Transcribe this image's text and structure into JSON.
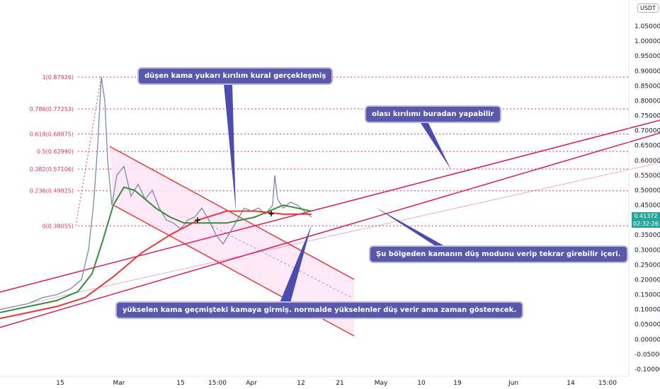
{
  "quote_currency": "USDT",
  "price_tag": {
    "price": "0.41372",
    "countdown": "02:32:26"
  },
  "colors": {
    "fib": "#d6336c",
    "channel": "#d81b60",
    "note_bg": "#5a58a8",
    "ma_green": "#3b8a3e",
    "ma_red": "#e53935",
    "pointer": "#4b4bb0",
    "price_tag": "#26a69a"
  },
  "annotations": [
    {
      "text": "düşen kama yukarı kırılım kural gerçekleşmiş"
    },
    {
      "text": "olası kırılımı buradan yapabilir"
    },
    {
      "text": "Şu bölgeden kamanın düş modunu verip tekrar girebilir içeri."
    },
    {
      "text": "yükselen kama geçmişteki kamaya girmiş. normalde yükselenler düş verir ama zaman gösterecek."
    }
  ],
  "chart_data": {
    "type": "line",
    "y_axis": {
      "min": -0.1,
      "max": 1.1,
      "position": "right"
    },
    "y_ticks": [
      "1.05000",
      "1.00000",
      "0.95000",
      "0.90000",
      "0.85000",
      "0.80000",
      "0.75000",
      "0.70000",
      "0.65000",
      "0.60000",
      "0.55000",
      "0.50000",
      "0.45000",
      "0.40000",
      "0.35000",
      "0.30000",
      "0.25000",
      "0.20000",
      "0.15000",
      "0.10000",
      "0.05000",
      "0.00000",
      "-0.05000",
      "-0.10000"
    ],
    "x_ticks": [
      "15",
      "Mar",
      "15",
      "15:00",
      "Apr",
      "12",
      "21",
      "May",
      "10",
      "19",
      "Jun",
      "14",
      "15:00"
    ],
    "fib_levels": [
      {
        "label": "1(0.87926)",
        "value": 0.87926
      },
      {
        "label": "0.786(0.77253)",
        "value": 0.77253
      },
      {
        "label": "0.618(0.68875)",
        "value": 0.68875
      },
      {
        "label": "0.5(0.62990)",
        "value": 0.6299
      },
      {
        "label": "0.382(0.57106)",
        "value": 0.57106
      },
      {
        "label": "0.236(0.49825)",
        "value": 0.49825
      },
      {
        "label": "0(0.38055)",
        "value": 0.38055
      }
    ],
    "price_path": [
      [
        0,
        0.1
      ],
      [
        20,
        0.11
      ],
      [
        40,
        0.12
      ],
      [
        60,
        0.14
      ],
      [
        80,
        0.15
      ],
      [
        100,
        0.17
      ],
      [
        115,
        0.2
      ],
      [
        125,
        0.3
      ],
      [
        132,
        0.45
      ],
      [
        138,
        0.65
      ],
      [
        143,
        0.88
      ],
      [
        148,
        0.8
      ],
      [
        152,
        0.6
      ],
      [
        158,
        0.45
      ],
      [
        165,
        0.55
      ],
      [
        175,
        0.58
      ],
      [
        185,
        0.48
      ],
      [
        195,
        0.52
      ],
      [
        205,
        0.47
      ],
      [
        215,
        0.5
      ],
      [
        225,
        0.44
      ],
      [
        235,
        0.4
      ],
      [
        245,
        0.39
      ],
      [
        255,
        0.37
      ],
      [
        265,
        0.4
      ],
      [
        275,
        0.41
      ],
      [
        285,
        0.44
      ],
      [
        295,
        0.4
      ],
      [
        305,
        0.35
      ],
      [
        315,
        0.32
      ],
      [
        325,
        0.36
      ],
      [
        335,
        0.4
      ],
      [
        345,
        0.44
      ],
      [
        355,
        0.43
      ],
      [
        365,
        0.44
      ],
      [
        375,
        0.42
      ],
      [
        385,
        0.45
      ],
      [
        388,
        0.55
      ],
      [
        392,
        0.47
      ],
      [
        400,
        0.44
      ],
      [
        410,
        0.46
      ],
      [
        420,
        0.45
      ],
      [
        430,
        0.43
      ],
      [
        440,
        0.41
      ]
    ],
    "series": [
      {
        "values": [
          [
            0,
            0.09
          ],
          [
            40,
            0.11
          ],
          [
            80,
            0.13
          ],
          [
            110,
            0.16
          ],
          [
            130,
            0.22
          ],
          [
            145,
            0.33
          ],
          [
            160,
            0.45
          ],
          [
            175,
            0.51
          ],
          [
            190,
            0.5
          ],
          [
            205,
            0.47
          ],
          [
            220,
            0.44
          ],
          [
            240,
            0.41
          ],
          [
            260,
            0.39
          ],
          [
            280,
            0.39
          ],
          [
            300,
            0.39
          ],
          [
            320,
            0.39
          ],
          [
            340,
            0.4
          ],
          [
            360,
            0.41
          ],
          [
            380,
            0.43
          ],
          [
            400,
            0.45
          ],
          [
            420,
            0.44
          ],
          [
            440,
            0.43
          ]
        ]
      },
      {
        "values": [
          [
            0,
            0.07
          ],
          [
            40,
            0.09
          ],
          [
            80,
            0.11
          ],
          [
            120,
            0.14
          ],
          [
            160,
            0.21
          ],
          [
            200,
            0.29
          ],
          [
            240,
            0.35
          ],
          [
            280,
            0.4
          ],
          [
            320,
            0.43
          ],
          [
            360,
            0.43
          ],
          [
            400,
            0.42
          ],
          [
            440,
            0.42
          ]
        ]
      }
    ]
  }
}
